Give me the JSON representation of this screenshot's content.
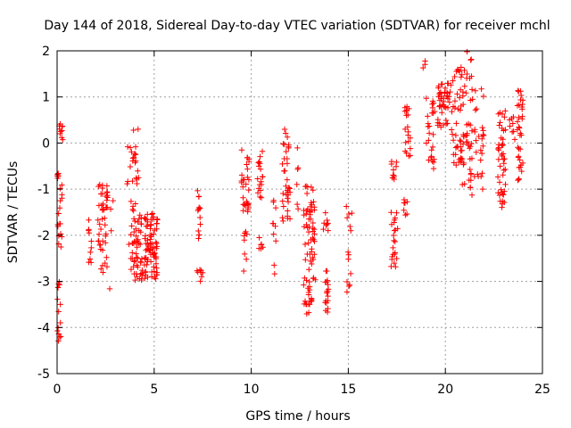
{
  "chart_data": {
    "type": "scatter",
    "title": "Day 144 of 2018, Sidereal Day-to-day VTEC variation (SDTVAR) for receiver mchl",
    "xlabel": "GPS time / hours",
    "ylabel": "SDTVAR / TECUs",
    "xlim": [
      0,
      25
    ],
    "ylim": [
      -5,
      2
    ],
    "xticks": [
      "0",
      "5",
      "10",
      "15",
      "20",
      "25"
    ],
    "yticks": [
      "-5",
      "-4",
      "-3",
      "-2",
      "-1",
      "0",
      "1",
      "2"
    ],
    "grid": true,
    "marker": "+",
    "color": "#ff0000",
    "clusters": [
      {
        "x": [
          0.0,
          0.2
        ],
        "y": [
          -4.3,
          -3.0
        ],
        "n": 14
      },
      {
        "x": [
          0.0,
          0.25
        ],
        "y": [
          -2.4,
          -0.6
        ],
        "n": 22
      },
      {
        "x": [
          0.1,
          0.3
        ],
        "y": [
          0.0,
          0.55
        ],
        "n": 10
      },
      {
        "x": [
          1.6,
          1.8
        ],
        "y": [
          -2.6,
          -1.6
        ],
        "n": 10
      },
      {
        "x": [
          2.1,
          2.6
        ],
        "y": [
          -2.9,
          -0.9
        ],
        "n": 45
      },
      {
        "x": [
          2.7,
          2.9
        ],
        "y": [
          -3.35,
          -0.8
        ],
        "n": 4
      },
      {
        "x": [
          3.6,
          4.2
        ],
        "y": [
          -1.0,
          0.35
        ],
        "n": 22
      },
      {
        "x": [
          3.7,
          4.4
        ],
        "y": [
          -3.0,
          -1.2
        ],
        "n": 55
      },
      {
        "x": [
          4.5,
          5.2
        ],
        "y": [
          -3.0,
          -1.5
        ],
        "n": 80
      },
      {
        "x": [
          7.2,
          7.5
        ],
        "y": [
          -3.0,
          -2.6
        ],
        "n": 8
      },
      {
        "x": [
          7.2,
          7.4
        ],
        "y": [
          -2.1,
          -1.0
        ],
        "n": 12
      },
      {
        "x": [
          9.5,
          9.9
        ],
        "y": [
          -1.5,
          -0.0
        ],
        "n": 30
      },
      {
        "x": [
          9.6,
          9.8
        ],
        "y": [
          -2.8,
          -1.9
        ],
        "n": 8
      },
      {
        "x": [
          10.3,
          10.6
        ],
        "y": [
          -1.2,
          0.0
        ],
        "n": 18
      },
      {
        "x": [
          10.4,
          10.6
        ],
        "y": [
          -2.3,
          -1.9
        ],
        "n": 6
      },
      {
        "x": [
          11.1,
          11.3
        ],
        "y": [
          -3.1,
          -1.2
        ],
        "n": 10
      },
      {
        "x": [
          11.6,
          12.0
        ],
        "y": [
          -1.8,
          0.3
        ],
        "n": 35
      },
      {
        "x": [
          12.3,
          12.6
        ],
        "y": [
          -2.3,
          0.1
        ],
        "n": 6
      },
      {
        "x": [
          12.7,
          13.3
        ],
        "y": [
          -3.8,
          -0.9
        ],
        "n": 75
      },
      {
        "x": [
          13.8,
          14.0
        ],
        "y": [
          -3.7,
          -2.7
        ],
        "n": 18
      },
      {
        "x": [
          13.7,
          14.0
        ],
        "y": [
          -2.0,
          -1.5
        ],
        "n": 8
      },
      {
        "x": [
          14.9,
          15.2
        ],
        "y": [
          -3.3,
          -1.3
        ],
        "n": 14
      },
      {
        "x": [
          17.2,
          17.6
        ],
        "y": [
          -2.7,
          -1.5
        ],
        "n": 22
      },
      {
        "x": [
          17.2,
          17.5
        ],
        "y": [
          -0.8,
          -0.4
        ],
        "n": 10
      },
      {
        "x": [
          17.8,
          18.1
        ],
        "y": [
          -1.6,
          -1.2
        ],
        "n": 8
      },
      {
        "x": [
          17.9,
          18.2
        ],
        "y": [
          -0.3,
          0.8
        ],
        "n": 20
      },
      {
        "x": [
          18.8,
          19.0
        ],
        "y": [
          1.6,
          1.8
        ],
        "n": 3
      },
      {
        "x": [
          19.0,
          19.5
        ],
        "y": [
          -0.6,
          1.0
        ],
        "n": 25
      },
      {
        "x": [
          19.6,
          20.3
        ],
        "y": [
          0.3,
          1.3
        ],
        "n": 45
      },
      {
        "x": [
          20.3,
          21.0
        ],
        "y": [
          -0.5,
          1.6
        ],
        "n": 45
      },
      {
        "x": [
          20.8,
          21.4
        ],
        "y": [
          -1.2,
          2.0
        ],
        "n": 45
      },
      {
        "x": [
          21.5,
          22.0
        ],
        "y": [
          -1.0,
          1.2
        ],
        "n": 25
      },
      {
        "x": [
          22.7,
          23.1
        ],
        "y": [
          -1.4,
          0.7
        ],
        "n": 45
      },
      {
        "x": [
          23.3,
          23.6
        ],
        "y": [
          0.0,
          0.6
        ],
        "n": 8
      },
      {
        "x": [
          23.7,
          24.0
        ],
        "y": [
          -0.9,
          1.3
        ],
        "n": 35
      }
    ]
  }
}
